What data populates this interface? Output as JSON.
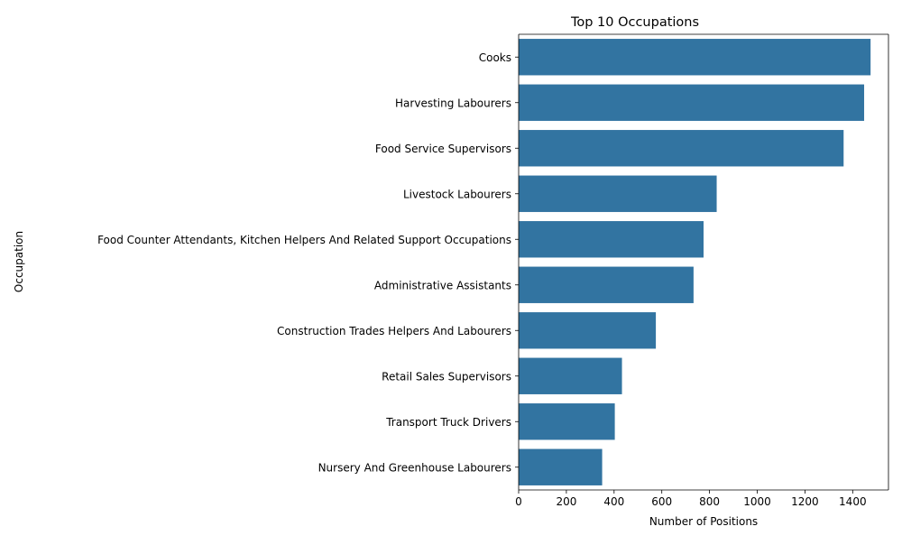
{
  "chart_data": {
    "type": "bar",
    "orientation": "horizontal",
    "title": "Top 10 Occupations",
    "xlabel": "Number of Positions",
    "ylabel": "Occupation",
    "categories": [
      "Cooks",
      "Harvesting Labourers",
      "Food Service Supervisors",
      "Livestock Labourers",
      "Food Counter Attendants, Kitchen Helpers And Related Support Occupations",
      "Administrative Assistants",
      "Construction Trades Helpers And Labourers",
      "Retail Sales Supervisors",
      "Transport Truck Drivers",
      "Nursery And Greenhouse Labourers"
    ],
    "values": [
      1475,
      1448,
      1362,
      830,
      775,
      733,
      575,
      433,
      403,
      350
    ],
    "xlim": [
      0,
      1550
    ],
    "xticks": [
      "0",
      "200",
      "400",
      "600",
      "800",
      "1000",
      "1200",
      "1400"
    ],
    "grid": false,
    "bar_color": "#3274a1"
  }
}
